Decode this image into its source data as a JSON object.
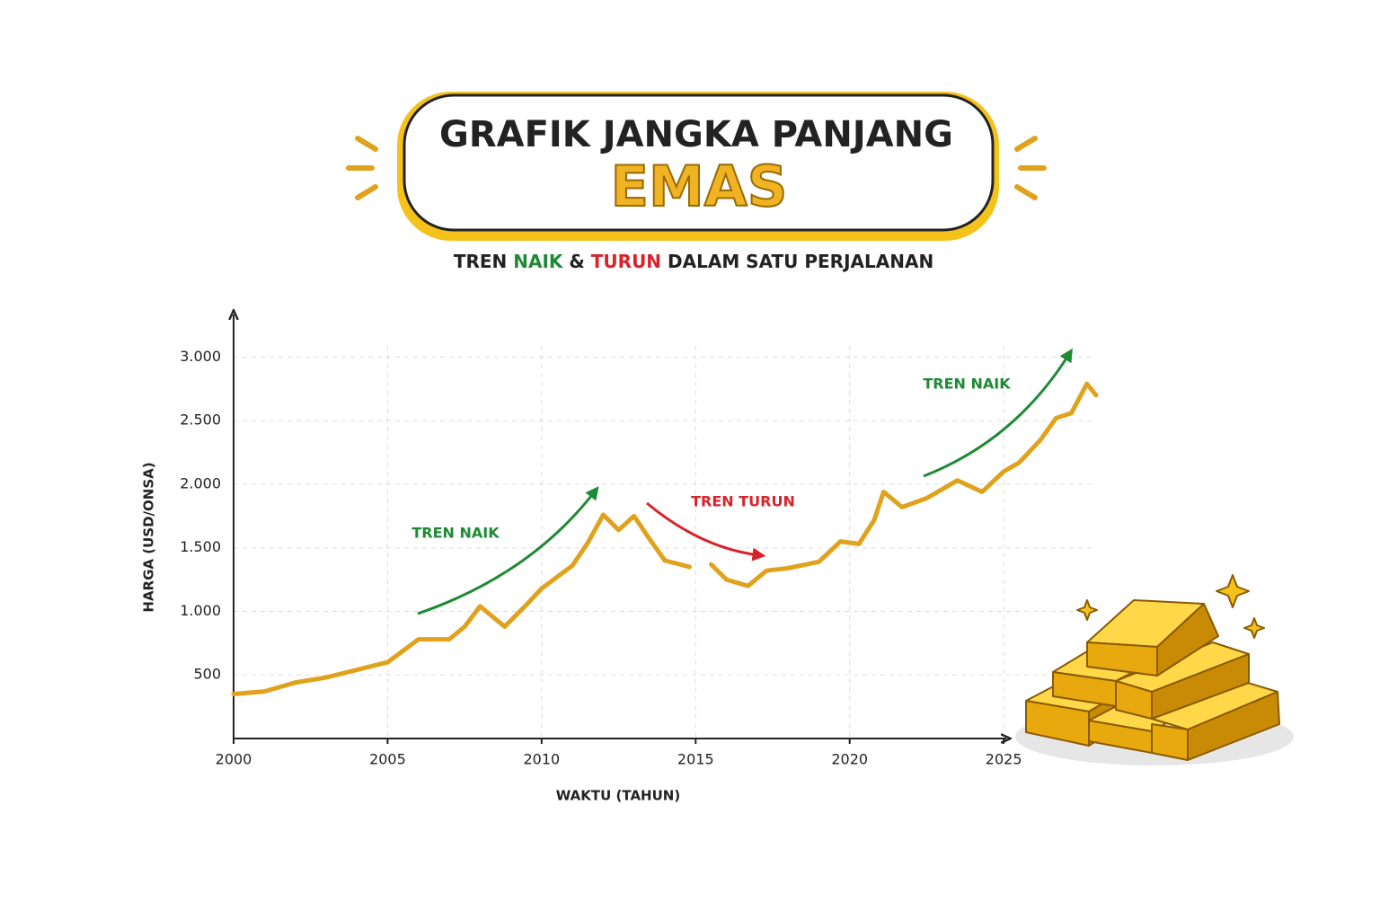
{
  "chart_data": {
    "type": "line",
    "title": "GRAFIK JANGKA PANJANG",
    "title_highlight": "EMAS",
    "subtitle": [
      "TREN",
      "NAIK",
      "&",
      "TURUN",
      "DALAM SATU PERJALANAN"
    ],
    "x_label": "WAKTU (TAHUN)",
    "y_label": "HARGA (USD/ONSA)",
    "annotations": [
      "TREN NAIK",
      "TREN TURUN",
      "TREN NAIK"
    ],
    "color": "#e0a21c",
    "grid": true,
    "xlim": [
      2000,
      2028
    ],
    "ylim": [
      0,
      3300
    ],
    "xticks": [
      2000,
      2005,
      2010,
      2015,
      2020,
      2025
    ],
    "yticks": [
      500,
      {
        "value": 1000,
        "label": "1.000"
      },
      {
        "value": 1500,
        "label": "1.500"
      },
      {
        "value": 2000,
        "label": "2.000"
      },
      {
        "value": 2500,
        "label": "2.500"
      },
      {
        "value": 3000,
        "label": "3.000"
      }
    ],
    "x": [
      2000,
      2001,
      2002,
      2003,
      2004,
      2005,
      2006,
      2007,
      2007.5,
      2008,
      2008.8,
      2009.5,
      2010,
      2011,
      2011.5,
      2012,
      2012.5,
      2013,
      2013.5,
      2014,
      2014.8,
      2015.2,
      2015.5,
      2016,
      2016.7,
      2017.3,
      2018,
      2019,
      2019.7,
      2020.3,
      2020.8,
      2021.1,
      2021.7,
      2022.5,
      2023.5,
      2024.3,
      2025,
      2025.5,
      2026.2,
      2026.7,
      2027.2,
      2027.7,
      2028
    ],
    "values": [
      350,
      370,
      440,
      480,
      540,
      600,
      780,
      780,
      880,
      1040,
      880,
      1050,
      1180,
      1360,
      1540,
      1760,
      1640,
      1750,
      1570,
      1400,
      1350,
      null,
      1370,
      1250,
      1200,
      1320,
      1340,
      1390,
      1550,
      1530,
      1720,
      1940,
      1820,
      1890,
      2030,
      1940,
      2100,
      2170,
      2350,
      2520,
      2560,
      2790,
      2700
    ]
  }
}
